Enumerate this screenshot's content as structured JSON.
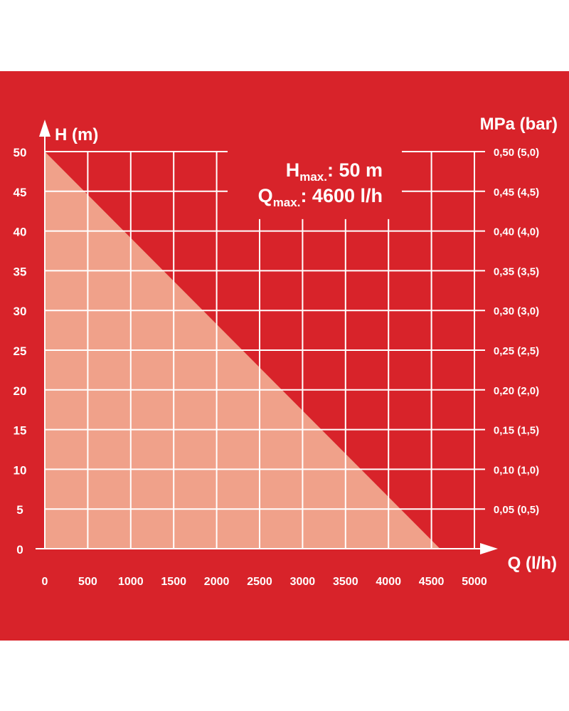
{
  "chart_data": {
    "type": "area",
    "colors": {
      "background": "#d8232a",
      "grid": "#ffffff",
      "fill": "#f0a18a",
      "text": "#ffffff"
    },
    "series": [
      {
        "x": [
          0,
          4600
        ],
        "y": [
          50,
          0
        ]
      }
    ],
    "x_axis": {
      "label": "Q (l/h)",
      "range": [
        0,
        5000
      ],
      "ticks": [
        0,
        500,
        1000,
        1500,
        2000,
        2500,
        3000,
        3500,
        4000,
        4500,
        5000
      ],
      "tick_labels": [
        "0",
        "500",
        "1000",
        "1500",
        "2000",
        "2500",
        "3000",
        "3500",
        "4000",
        "4500",
        "5000"
      ]
    },
    "y_axis_left": {
      "label": "H (m)",
      "range": [
        0,
        50
      ],
      "ticks": [
        0,
        5,
        10,
        15,
        20,
        25,
        30,
        35,
        40,
        45,
        50
      ],
      "tick_labels": [
        "0",
        "5",
        "10",
        "15",
        "20",
        "25",
        "30",
        "35",
        "40",
        "45",
        "50"
      ]
    },
    "y_axis_right": {
      "label": "MPa (bar)",
      "ticks": [
        5,
        10,
        15,
        20,
        25,
        30,
        35,
        40,
        45,
        50
      ],
      "tick_labels": [
        "0,05 (0,5)",
        "0,10 (1,0)",
        "0,15 (1,5)",
        "0,20 (2,0)",
        "0,25 (2,5)",
        "0,30 (3,0)",
        "0,35 (3,5)",
        "0,40 (4,0)",
        "0,45 (4,5)",
        "0,50 (5,0)"
      ]
    },
    "grid": true,
    "annotations": [
      {
        "base": "H",
        "sub": "max.",
        "value": ": 50 m"
      },
      {
        "base": "Q",
        "sub": "max.",
        "value": ": 4600 l/h"
      }
    ]
  }
}
